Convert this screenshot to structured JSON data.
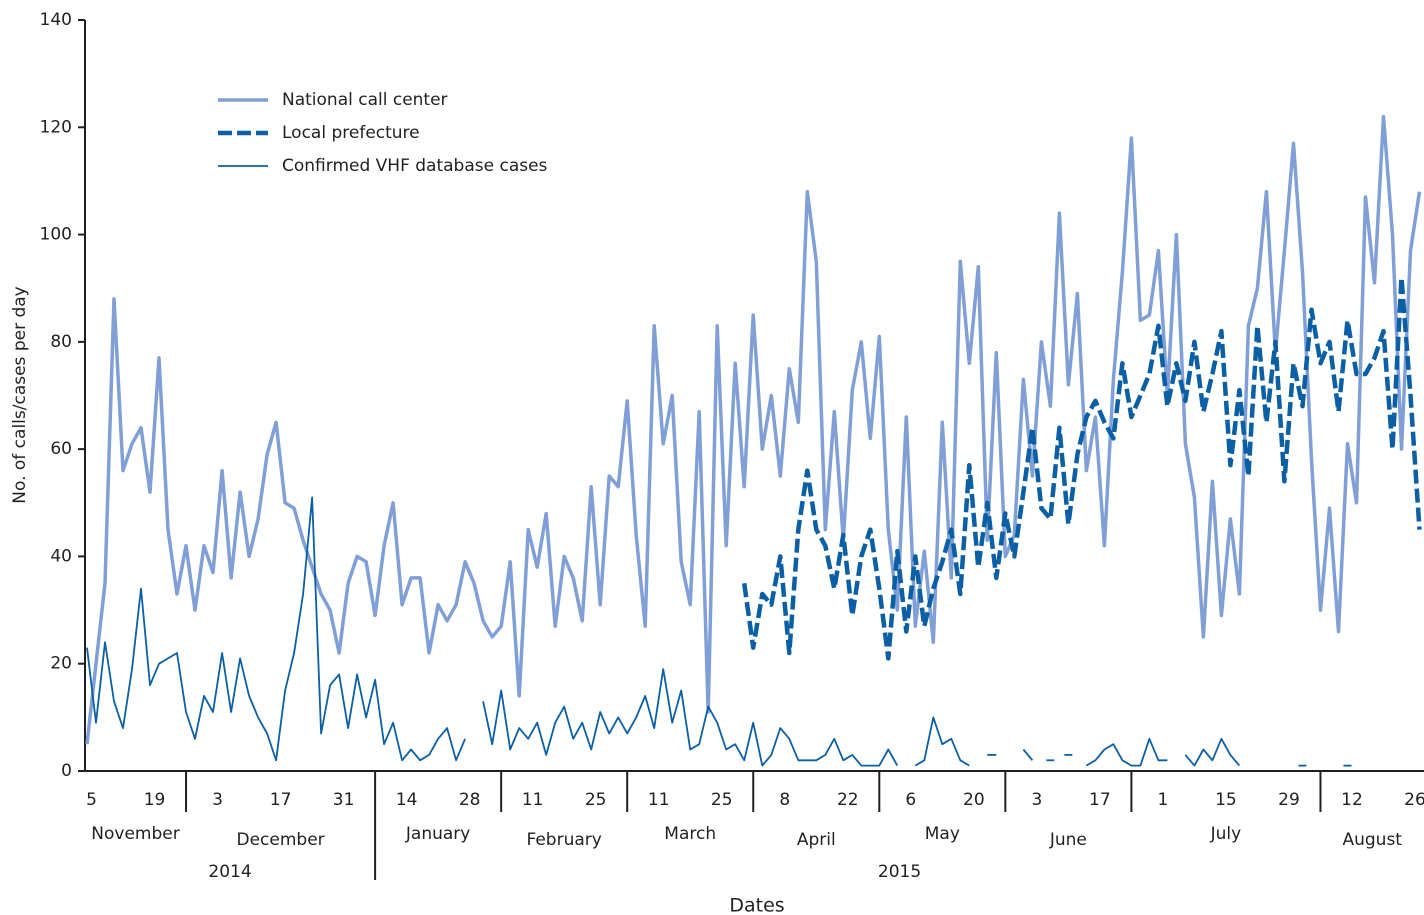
{
  "chart_data": {
    "type": "line",
    "y_label": "No. of calls/cases per day",
    "x_label": "Dates",
    "ylim": [
      0,
      140
    ],
    "yticks": [
      0,
      20,
      40,
      60,
      80,
      100,
      120,
      140
    ],
    "xlim": [
      "2014-11-04",
      "2015-08-28"
    ],
    "xticks": [
      {
        "value": "2014-11-05",
        "label": "5"
      },
      {
        "value": "2014-11-19",
        "label": "19"
      },
      {
        "value": "2014-12-03",
        "label": "3"
      },
      {
        "value": "2014-12-17",
        "label": "17"
      },
      {
        "value": "2014-12-31",
        "label": "31"
      },
      {
        "value": "2015-01-14",
        "label": "14"
      },
      {
        "value": "2015-01-28",
        "label": "28"
      },
      {
        "value": "2015-02-11",
        "label": "11"
      },
      {
        "value": "2015-02-25",
        "label": "25"
      },
      {
        "value": "2015-03-11",
        "label": "11"
      },
      {
        "value": "2015-03-25",
        "label": "25"
      },
      {
        "value": "2015-04-08",
        "label": "8"
      },
      {
        "value": "2015-04-22",
        "label": "22"
      },
      {
        "value": "2015-05-06",
        "label": "6"
      },
      {
        "value": "2015-05-20",
        "label": "20"
      },
      {
        "value": "2015-06-03",
        "label": "3"
      },
      {
        "value": "2015-06-17",
        "label": "17"
      },
      {
        "value": "2015-07-01",
        "label": "1"
      },
      {
        "value": "2015-07-15",
        "label": "15"
      },
      {
        "value": "2015-07-29",
        "label": "29"
      },
      {
        "value": "2015-08-12",
        "label": "12"
      },
      {
        "value": "2015-08-26",
        "label": "26"
      }
    ],
    "month_separators": [
      "2014-11-26",
      "2015-01-07",
      "2015-02-04",
      "2015-03-04",
      "2015-04-01",
      "2015-04-29",
      "2015-05-27",
      "2015-06-24",
      "2015-08-05"
    ],
    "months": [
      "November",
      "December",
      "January",
      "February",
      "March",
      "April",
      "May",
      "June",
      "July",
      "August"
    ],
    "year_breaks": [
      "2015-01-07"
    ],
    "years": [
      "2014",
      "2015"
    ],
    "x": [
      "2014-11-04",
      "2014-11-06",
      "2014-11-08",
      "2014-11-10",
      "2014-11-12",
      "2014-11-14",
      "2014-11-16",
      "2014-11-18",
      "2014-11-20",
      "2014-11-22",
      "2014-11-24",
      "2014-11-26",
      "2014-11-28",
      "2014-11-30",
      "2014-12-02",
      "2014-12-04",
      "2014-12-06",
      "2014-12-08",
      "2014-12-10",
      "2014-12-12",
      "2014-12-14",
      "2014-12-16",
      "2014-12-18",
      "2014-12-20",
      "2014-12-22",
      "2014-12-24",
      "2014-12-26",
      "2014-12-28",
      "2014-12-30",
      "2015-01-01",
      "2015-01-03",
      "2015-01-05",
      "2015-01-07",
      "2015-01-09",
      "2015-01-11",
      "2015-01-13",
      "2015-01-15",
      "2015-01-17",
      "2015-01-19",
      "2015-01-21",
      "2015-01-23",
      "2015-01-25",
      "2015-01-27",
      "2015-01-29",
      "2015-01-31",
      "2015-02-02",
      "2015-02-04",
      "2015-02-06",
      "2015-02-08",
      "2015-02-10",
      "2015-02-12",
      "2015-02-14",
      "2015-02-16",
      "2015-02-18",
      "2015-02-20",
      "2015-02-22",
      "2015-02-24",
      "2015-02-26",
      "2015-02-28",
      "2015-03-02",
      "2015-03-04",
      "2015-03-06",
      "2015-03-08",
      "2015-03-10",
      "2015-03-12",
      "2015-03-14",
      "2015-03-16",
      "2015-03-18",
      "2015-03-20",
      "2015-03-22",
      "2015-03-24",
      "2015-03-26",
      "2015-03-28",
      "2015-03-30",
      "2015-04-01",
      "2015-04-03",
      "2015-04-05",
      "2015-04-07",
      "2015-04-09",
      "2015-04-11",
      "2015-04-13",
      "2015-04-15",
      "2015-04-17",
      "2015-04-19",
      "2015-04-21",
      "2015-04-23",
      "2015-04-25",
      "2015-04-27",
      "2015-04-29",
      "2015-05-01",
      "2015-05-03",
      "2015-05-05",
      "2015-05-07",
      "2015-05-09",
      "2015-05-11",
      "2015-05-13",
      "2015-05-15",
      "2015-05-17",
      "2015-05-19",
      "2015-05-21",
      "2015-05-23",
      "2015-05-25",
      "2015-05-27",
      "2015-05-29",
      "2015-05-31",
      "2015-06-02",
      "2015-06-04",
      "2015-06-06",
      "2015-06-08",
      "2015-06-10",
      "2015-06-12",
      "2015-06-14",
      "2015-06-16",
      "2015-06-18",
      "2015-06-20",
      "2015-06-22",
      "2015-06-24",
      "2015-06-26",
      "2015-06-28",
      "2015-06-30",
      "2015-07-02",
      "2015-07-04",
      "2015-07-06",
      "2015-07-08",
      "2015-07-10",
      "2015-07-12",
      "2015-07-14",
      "2015-07-16",
      "2015-07-18",
      "2015-07-20",
      "2015-07-22",
      "2015-07-24",
      "2015-07-26",
      "2015-07-28",
      "2015-07-30",
      "2015-08-01",
      "2015-08-03",
      "2015-08-05",
      "2015-08-07",
      "2015-08-09",
      "2015-08-11",
      "2015-08-13",
      "2015-08-15",
      "2015-08-17",
      "2015-08-19",
      "2015-08-21",
      "2015-08-23",
      "2015-08-25",
      "2015-08-27"
    ],
    "series": [
      {
        "name": "National call center",
        "color": "#7f9fd6",
        "style": "solid",
        "width": 3.5,
        "values": [
          5,
          20,
          35,
          88,
          56,
          61,
          64,
          52,
          77,
          45,
          33,
          42,
          30,
          42,
          37,
          56,
          36,
          52,
          40,
          47,
          59,
          65,
          50,
          49,
          43,
          38,
          33,
          30,
          22,
          35,
          40,
          39,
          29,
          42,
          50,
          31,
          36,
          36,
          22,
          31,
          28,
          31,
          39,
          35,
          28,
          25,
          27,
          39,
          14,
          45,
          38,
          48,
          27,
          40,
          36,
          28,
          53,
          31,
          55,
          53,
          69,
          44,
          27,
          83,
          61,
          70,
          39,
          31,
          67,
          11,
          83,
          42,
          76,
          53,
          85,
          60,
          70,
          55,
          75,
          65,
          108,
          95,
          45,
          67,
          43,
          71,
          80,
          62,
          81,
          45,
          30,
          66,
          27,
          41,
          24,
          65,
          36,
          95,
          76,
          94,
          43,
          78,
          40,
          44,
          73,
          55,
          80,
          68,
          104,
          72,
          89,
          56,
          66,
          42,
          73,
          93,
          118,
          84,
          85,
          97,
          70,
          100,
          61,
          51,
          25,
          54,
          29,
          47,
          33,
          83,
          90,
          108,
          78,
          97,
          117,
          93,
          58,
          30,
          49,
          26,
          61,
          50,
          107,
          91,
          122,
          100,
          60,
          97,
          108
        ]
      },
      {
        "name": "Local prefecture",
        "color": "#0b5fa5",
        "style": "dashed",
        "width": 4.5,
        "values": [
          null,
          null,
          null,
          null,
          null,
          null,
          null,
          null,
          null,
          null,
          null,
          null,
          null,
          null,
          null,
          null,
          null,
          null,
          null,
          null,
          null,
          null,
          null,
          null,
          null,
          null,
          null,
          null,
          null,
          null,
          null,
          null,
          null,
          null,
          null,
          null,
          null,
          null,
          null,
          null,
          null,
          null,
          null,
          null,
          null,
          null,
          null,
          null,
          null,
          null,
          null,
          null,
          null,
          null,
          null,
          null,
          null,
          null,
          null,
          null,
          null,
          null,
          null,
          null,
          null,
          null,
          null,
          null,
          null,
          null,
          null,
          null,
          null,
          35,
          23,
          33,
          31,
          40,
          22,
          45,
          56,
          45,
          42,
          34,
          44,
          29,
          40,
          45,
          34,
          21,
          41,
          26,
          40,
          27,
          34,
          39,
          45,
          33,
          57,
          38,
          50,
          36,
          48,
          40,
          52,
          64,
          49,
          47,
          64,
          46,
          59,
          66,
          69,
          65,
          62,
          76,
          66,
          70,
          74,
          83,
          68,
          76,
          69,
          80,
          67,
          74,
          82,
          57,
          71,
          55,
          83,
          65,
          80,
          54,
          76,
          68,
          86,
          76,
          80,
          67,
          84,
          74,
          74,
          77,
          82,
          60,
          92,
          70,
          45
        ]
      },
      {
        "name": "Confirmed VHF database cases",
        "color": "#0b5fa5",
        "style": "solid",
        "width": 1.8,
        "values": [
          23,
          9,
          24,
          13,
          8,
          19,
          34,
          16,
          20,
          21,
          22,
          11,
          6,
          14,
          11,
          22,
          11,
          21,
          14,
          10,
          7,
          2,
          15,
          22,
          33,
          51,
          7,
          16,
          18,
          8,
          18,
          10,
          17,
          5,
          9,
          2,
          4,
          2,
          3,
          6,
          8,
          2,
          6,
          null,
          13,
          5,
          15,
          4,
          8,
          6,
          9,
          3,
          9,
          12,
          6,
          9,
          4,
          11,
          7,
          10,
          7,
          10,
          14,
          8,
          19,
          9,
          15,
          4,
          5,
          12,
          9,
          4,
          5,
          2,
          9,
          1,
          3,
          8,
          6,
          2,
          2,
          2,
          3,
          6,
          2,
          3,
          1,
          1,
          1,
          4,
          1,
          null,
          1,
          2,
          10,
          5,
          6,
          2,
          1,
          null,
          3,
          3,
          null,
          null,
          4,
          2,
          null,
          2,
          null,
          3,
          null,
          1,
          2,
          4,
          5,
          2,
          1,
          1,
          6,
          2,
          2,
          null,
          3,
          1,
          4,
          2,
          6,
          3,
          1,
          null,
          null,
          null,
          null,
          null,
          null,
          1,
          null,
          null,
          null,
          null,
          1,
          null,
          null,
          null,
          null,
          null,
          null,
          null,
          null
        ]
      }
    ]
  }
}
